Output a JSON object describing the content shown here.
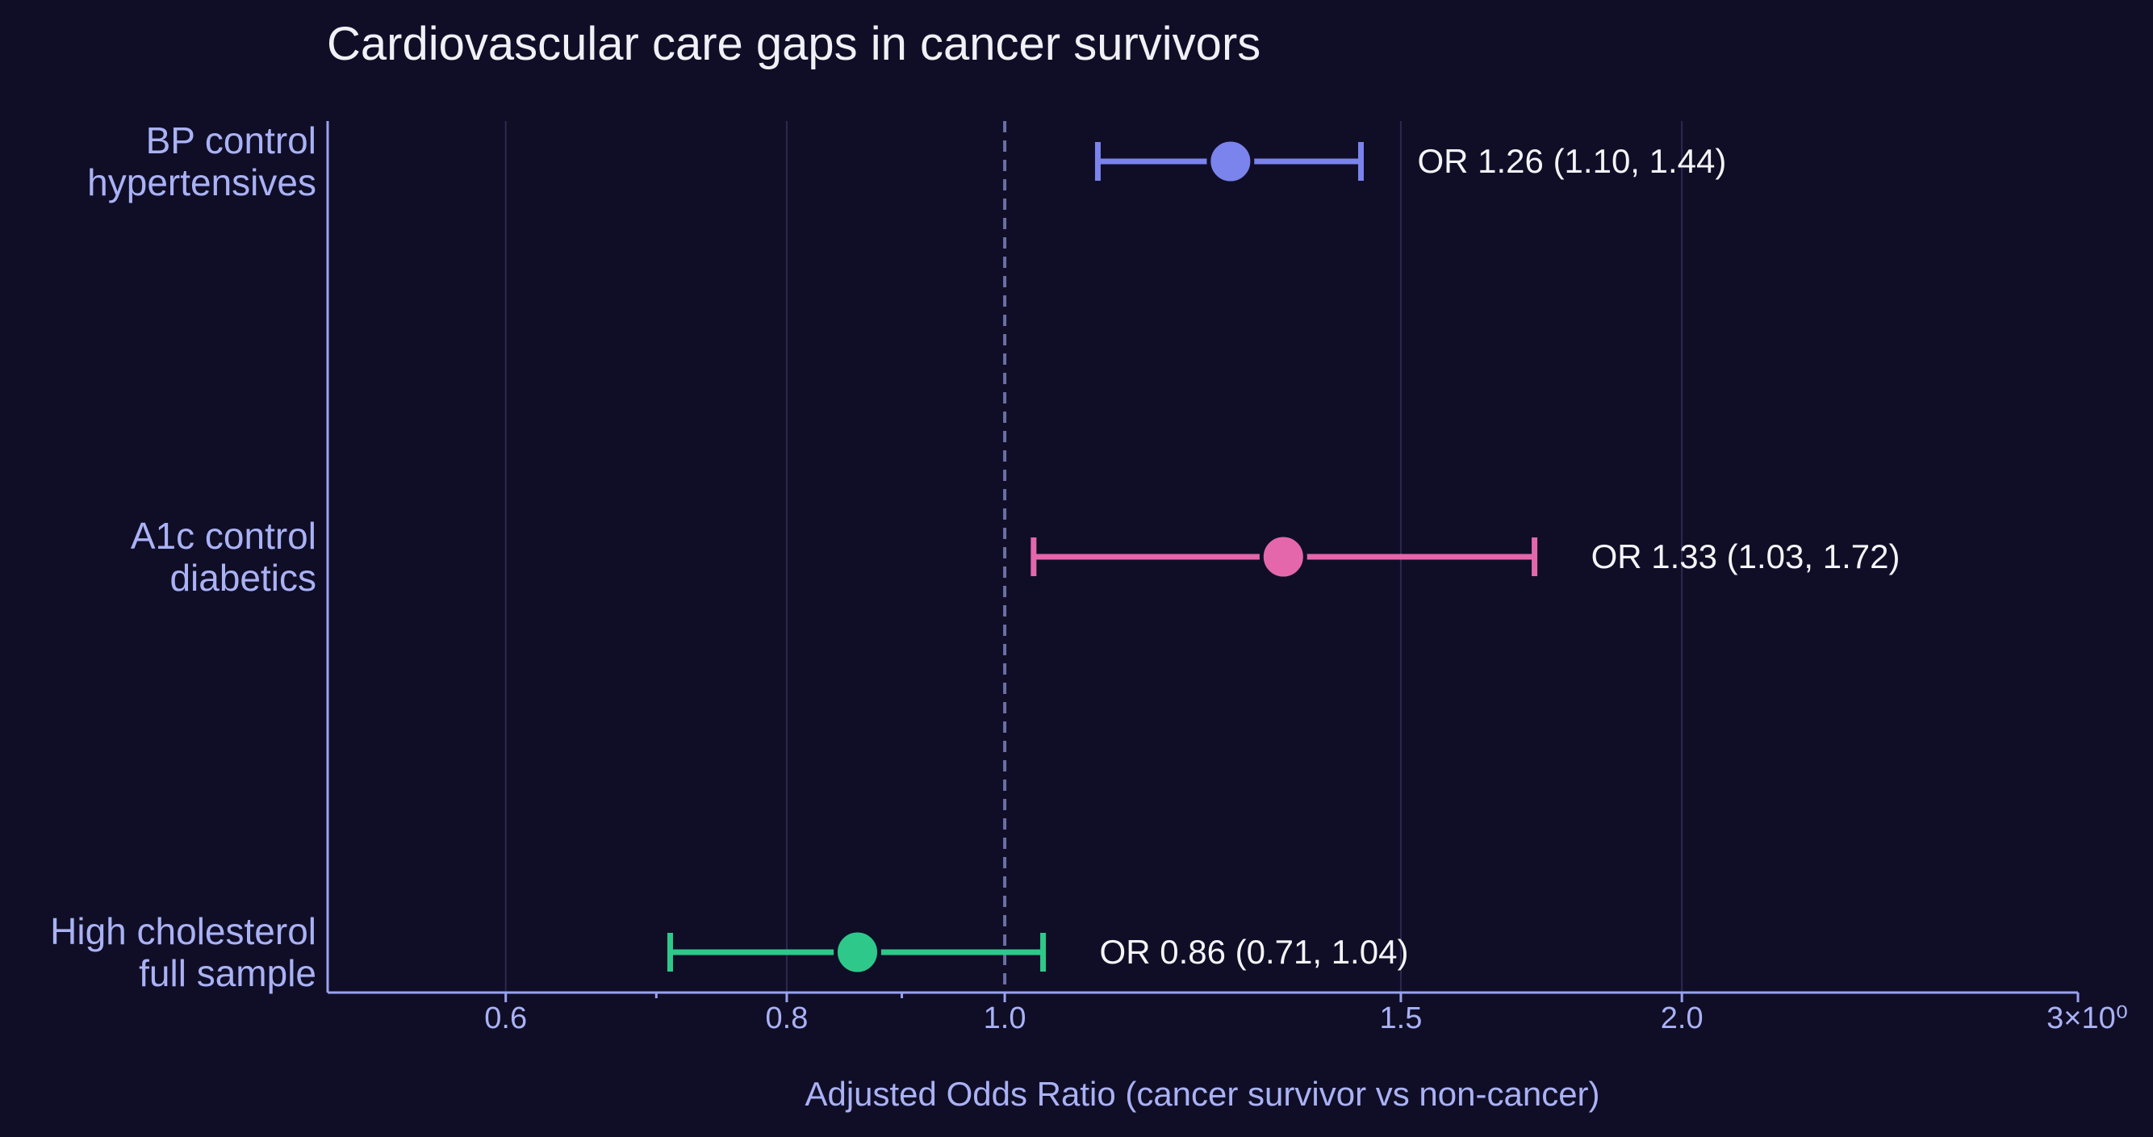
{
  "chart_data": {
    "type": "forest",
    "title": "Cardiovascular care gaps in cancer survivors",
    "xlabel": "Adjusted Odds Ratio (cancer survivor vs non-cancer)",
    "xscale": "log",
    "xlim": [
      0.5,
      3.0
    ],
    "xticks": [
      {
        "value": 0.6,
        "label": "0.6"
      },
      {
        "value": 0.8,
        "label": "0.8"
      },
      {
        "value": 1.0,
        "label": "1.0"
      },
      {
        "value": 1.5,
        "label": "1.5"
      },
      {
        "value": 2.0,
        "label": "2.0"
      },
      {
        "value": 3.0,
        "label": "3×10⁰"
      }
    ],
    "minor_ticks": [
      0.7,
      0.9
    ],
    "grid": true,
    "reference_line": 1.0,
    "categories": [
      {
        "lines": [
          "BP control",
          "hypertensives"
        ]
      },
      {
        "lines": [
          "A1c control",
          "diabetics"
        ]
      },
      {
        "lines": [
          "High cholesterol",
          "full sample"
        ]
      }
    ],
    "series": [
      {
        "estimate": 1.26,
        "ci_low": 1.1,
        "ci_high": 1.44,
        "label": "OR 1.26  (1.10, 1.44)",
        "color": "#7b83ec"
      },
      {
        "estimate": 1.33,
        "ci_low": 1.03,
        "ci_high": 1.72,
        "label": "OR 1.33  (1.03, 1.72)",
        "color": "#e467ac"
      },
      {
        "estimate": 0.86,
        "ci_low": 0.71,
        "ci_high": 1.04,
        "label": "OR 0.86  (0.71, 1.04)",
        "color": "#2ec98a"
      }
    ]
  }
}
